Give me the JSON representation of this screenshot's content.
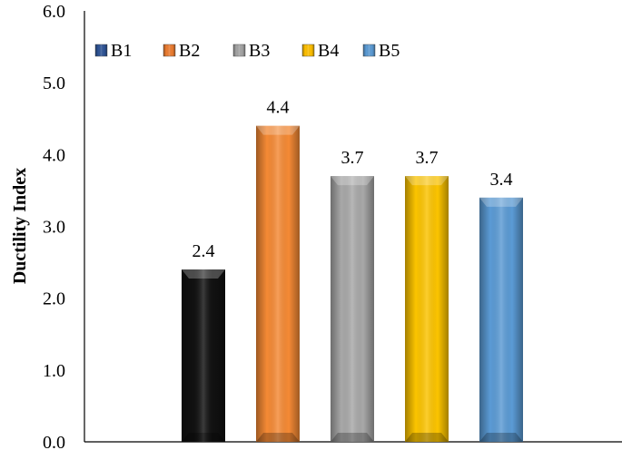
{
  "chart_data": {
    "type": "bar",
    "categories": [
      "B1",
      "B2",
      "B3",
      "B4",
      "B5"
    ],
    "values": [
      2.4,
      4.4,
      3.7,
      3.7,
      3.4
    ],
    "data_labels": [
      "2.4",
      "4.4",
      "3.7",
      "3.7",
      "3.4"
    ],
    "colors": [
      "#111111",
      "#f58a35",
      "#a8a8a8",
      "#fcc400",
      "#5b9bd5"
    ],
    "legend_colors": [
      "#2f5597",
      "#ed7d31",
      "#a5a5a5",
      "#ffc000",
      "#5b9bd5"
    ],
    "legend": [
      "B1",
      "B2",
      "B3",
      "B4",
      "B5"
    ],
    "legend_position": "top-left",
    "ylabel": "Ductility Index",
    "xlabel": "",
    "ylim": [
      0,
      6
    ],
    "yticks": [
      "0.0",
      "1.0",
      "2.0",
      "3.0",
      "4.0",
      "5.0",
      "6.0"
    ],
    "grid": false
  }
}
